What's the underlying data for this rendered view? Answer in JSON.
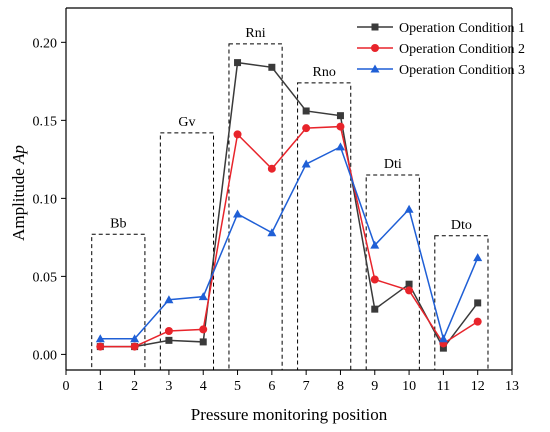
{
  "chart_data": {
    "type": "line",
    "title": "",
    "xlabel": "Pressure monitoring position",
    "ylabel_main": "Amplitude ",
    "ylabel_italic": "Ap",
    "xlim": [
      0,
      13
    ],
    "ylim": [
      -0.01,
      0.222
    ],
    "xticks": [
      0,
      1,
      2,
      3,
      4,
      5,
      6,
      7,
      8,
      9,
      10,
      11,
      12,
      13
    ],
    "yticks": [
      0.0,
      0.05,
      0.1,
      0.15,
      0.2
    ],
    "ytick_labels": [
      "0.00",
      "0.05",
      "0.10",
      "0.15",
      "0.20"
    ],
    "grid": false,
    "legend_position": "top-right",
    "x": [
      1,
      2,
      3,
      4,
      5,
      6,
      7,
      8,
      9,
      10,
      11,
      12
    ],
    "series": [
      {
        "name": "Operation Condition 1",
        "color": "#3a3a3a",
        "marker": "square",
        "values": [
          0.005,
          0.005,
          0.009,
          0.008,
          0.187,
          0.184,
          0.156,
          0.153,
          0.029,
          0.045,
          0.004,
          0.033
        ]
      },
      {
        "name": "Operation Condition 2",
        "color": "#e8242b",
        "marker": "circle",
        "values": [
          0.005,
          0.005,
          0.015,
          0.016,
          0.141,
          0.119,
          0.145,
          0.146,
          0.048,
          0.041,
          0.007,
          0.021
        ]
      },
      {
        "name": "Operation Condition 3",
        "color": "#1f5fd6",
        "marker": "triangle",
        "values": [
          0.01,
          0.01,
          0.035,
          0.037,
          0.09,
          0.078,
          0.122,
          0.133,
          0.07,
          0.093,
          0.01,
          0.062
        ]
      }
    ],
    "regions": [
      {
        "label": "Bb",
        "x_from": 0.75,
        "x_to": 2.3,
        "y_top": 0.077
      },
      {
        "label": "Gv",
        "x_from": 2.75,
        "x_to": 4.3,
        "y_top": 0.142
      },
      {
        "label": "Rni",
        "x_from": 4.75,
        "x_to": 6.3,
        "y_top": 0.199
      },
      {
        "label": "Rno",
        "x_from": 6.75,
        "x_to": 8.3,
        "y_top": 0.174
      },
      {
        "label": "Dti",
        "x_from": 8.75,
        "x_to": 10.3,
        "y_top": 0.115
      },
      {
        "label": "Dto",
        "x_from": 10.75,
        "x_to": 12.3,
        "y_top": 0.076
      }
    ]
  }
}
